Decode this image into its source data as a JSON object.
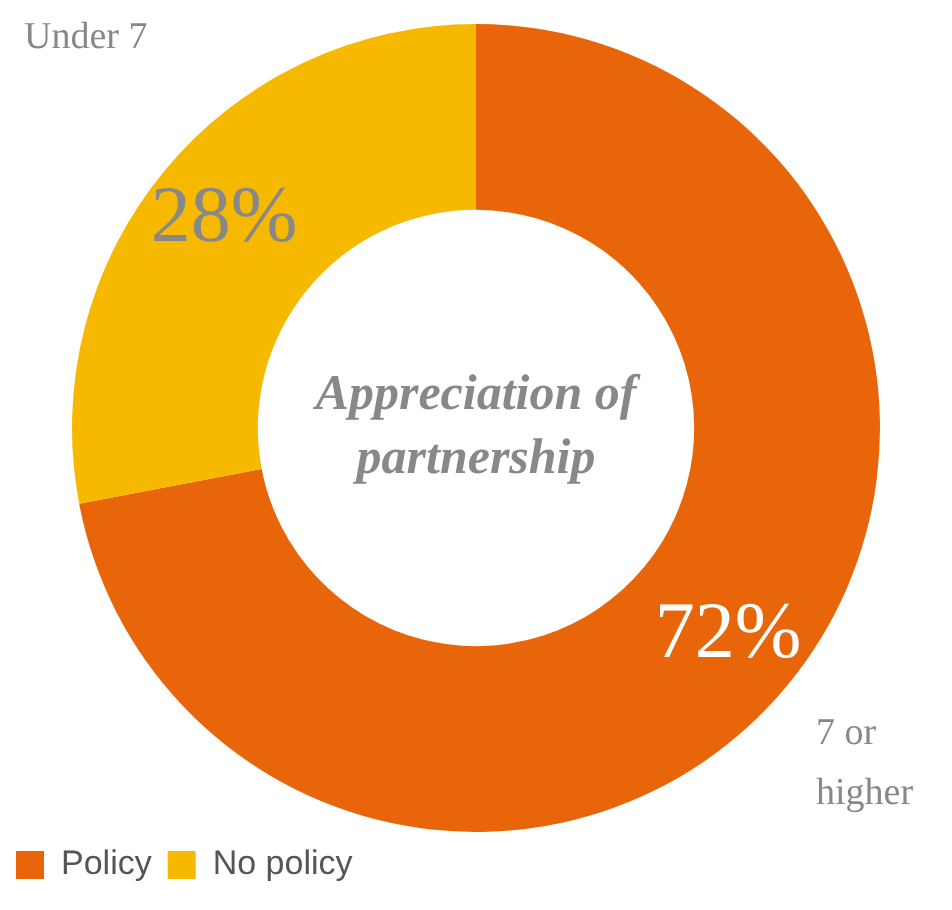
{
  "chart_data": {
    "type": "donut",
    "title": "Appreciation of partnership",
    "categories": [
      "Policy",
      "No policy"
    ],
    "values": [
      72,
      28
    ],
    "colors": [
      "#e8650a",
      "#f7b900"
    ],
    "value_labels": [
      "72%",
      "28%"
    ],
    "annotations": [
      "7 or higher",
      "Under 7"
    ],
    "legend": "bottom left"
  }
}
